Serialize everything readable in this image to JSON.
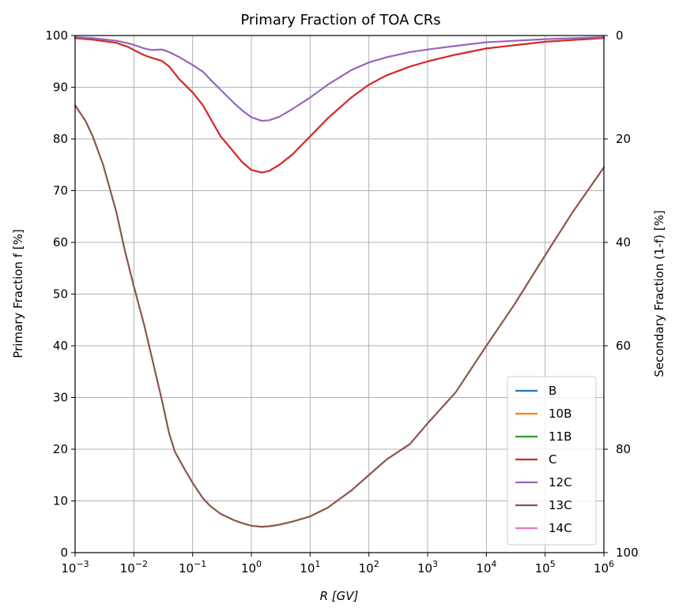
{
  "chart_data": {
    "type": "line",
    "title": "Primary Fraction of TOA CRs",
    "xlabel": "R [GV]",
    "ylabel": "Primary Fraction f [%]",
    "y2label": "Secondary Fraction (1-f) [%]",
    "xscale": "log",
    "xlim": [
      0.001,
      1000000
    ],
    "ylim": [
      0,
      100
    ],
    "y2lim": [
      100,
      0
    ],
    "grid": true,
    "legend_position": "lower right",
    "x_ticks": [
      {
        "value": 0.001,
        "base": "10",
        "exp": "−3"
      },
      {
        "value": 0.01,
        "base": "10",
        "exp": "−2"
      },
      {
        "value": 0.1,
        "base": "10",
        "exp": "−1"
      },
      {
        "value": 1,
        "base": "10",
        "exp": "0"
      },
      {
        "value": 10,
        "base": "10",
        "exp": "1"
      },
      {
        "value": 100,
        "base": "10",
        "exp": "2"
      },
      {
        "value": 1000,
        "base": "10",
        "exp": "3"
      },
      {
        "value": 10000,
        "base": "10",
        "exp": "4"
      },
      {
        "value": 100000,
        "base": "10",
        "exp": "5"
      },
      {
        "value": 1000000,
        "base": "10",
        "exp": "6"
      }
    ],
    "y_ticks": [
      0,
      10,
      20,
      30,
      40,
      50,
      60,
      70,
      80,
      90,
      100
    ],
    "y2_ticks": [
      0,
      20,
      40,
      60,
      80,
      100
    ],
    "series": [
      {
        "name": "B",
        "color": "#1f77b4",
        "x": [],
        "y": []
      },
      {
        "name": "10B",
        "color": "#ff7f0e",
        "x": [],
        "y": []
      },
      {
        "name": "11B",
        "color": "#2ca02c",
        "x": [],
        "y": []
      },
      {
        "name": "C",
        "color": "#d62728",
        "x": [
          0.001,
          0.002,
          0.005,
          0.008,
          0.01,
          0.015,
          0.02,
          0.03,
          0.04,
          0.06,
          0.1,
          0.15,
          0.2,
          0.3,
          0.5,
          0.7,
          1,
          1.5,
          2,
          3,
          5,
          10,
          20,
          50,
          100,
          200,
          500,
          1000,
          3000,
          10000,
          100000,
          1000000
        ],
        "y": [
          99.5,
          99.2,
          98.6,
          97.8,
          97.2,
          96.2,
          95.7,
          95.1,
          94.0,
          91.5,
          89.0,
          86.5,
          84.0,
          80.5,
          77.5,
          75.5,
          74.0,
          73.5,
          73.8,
          75.0,
          77.0,
          80.5,
          84.0,
          88.0,
          90.5,
          92.3,
          94.0,
          95.0,
          96.3,
          97.5,
          98.8,
          99.5
        ]
      },
      {
        "name": "12C",
        "color": "#9467bd",
        "x": [
          0.001,
          0.002,
          0.005,
          0.008,
          0.01,
          0.015,
          0.02,
          0.03,
          0.04,
          0.06,
          0.1,
          0.15,
          0.2,
          0.3,
          0.5,
          0.7,
          1,
          1.5,
          2,
          3,
          5,
          10,
          20,
          50,
          100,
          200,
          500,
          1000,
          3000,
          10000,
          100000,
          1000000
        ],
        "y": [
          99.7,
          99.5,
          99.0,
          98.5,
          98.2,
          97.5,
          97.2,
          97.3,
          96.8,
          95.8,
          94.3,
          93.0,
          91.5,
          89.5,
          87.0,
          85.5,
          84.2,
          83.5,
          83.6,
          84.3,
          85.8,
          88.0,
          90.5,
          93.3,
          94.8,
          95.8,
          96.8,
          97.3,
          98.0,
          98.7,
          99.3,
          99.7
        ]
      },
      {
        "name": "13C",
        "color": "#8c564b",
        "x": [
          0.001,
          0.0015,
          0.002,
          0.003,
          0.005,
          0.007,
          0.01,
          0.015,
          0.02,
          0.03,
          0.04,
          0.05,
          0.07,
          0.1,
          0.15,
          0.2,
          0.3,
          0.5,
          0.7,
          1,
          1.5,
          2,
          3,
          5,
          10,
          20,
          50,
          100,
          200,
          500,
          1000,
          3000,
          10000,
          30000,
          100000,
          300000,
          1000000
        ],
        "y": [
          86.5,
          83.5,
          80.5,
          75.0,
          66.0,
          58.5,
          51.5,
          44.0,
          38.0,
          29.5,
          23.0,
          19.5,
          16.5,
          13.5,
          10.5,
          9.0,
          7.5,
          6.3,
          5.7,
          5.2,
          5.0,
          5.1,
          5.4,
          6.0,
          7.0,
          8.7,
          12.0,
          15.0,
          18.0,
          21.0,
          25.0,
          31.0,
          40.0,
          48.0,
          57.5,
          66.0,
          74.5
        ]
      },
      {
        "name": "14C",
        "color": "#e377c2",
        "x": [],
        "y": []
      }
    ]
  }
}
